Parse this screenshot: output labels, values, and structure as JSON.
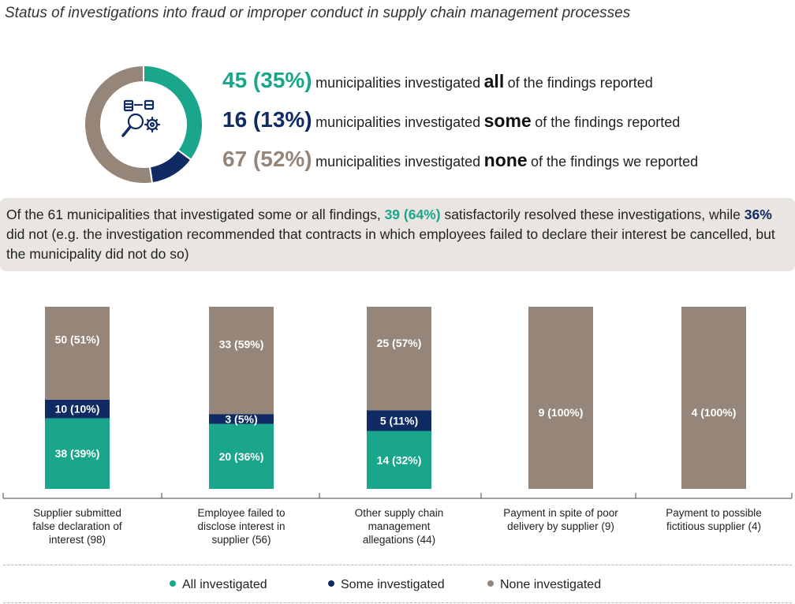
{
  "title": "Status of investigations into fraud or improper conduct in supply chain management processes",
  "colors": {
    "all": "#1aa68b",
    "some": "#102a64",
    "none": "#958679"
  },
  "summary": [
    {
      "key": "all",
      "number": "45 (35%)",
      "pre": "municipalities investigated",
      "keyword": "all",
      "post": "of the findings reported",
      "value": 45
    },
    {
      "key": "some",
      "number": "16 (13%)",
      "pre": "municipalities investigated",
      "keyword": "some",
      "post": "of the findings reported",
      "value": 16
    },
    {
      "key": "none",
      "number": "67 (52%)",
      "pre": "municipalities investigated",
      "keyword": "none",
      "post": "of the findings we reported",
      "value": 67
    }
  ],
  "icon": "investigation-magnifier-gear-icon",
  "note": {
    "part1": "Of the 61 municipalities that investigated some or all findings, ",
    "hl1": "39 (64%)",
    "part2": " satisfactorily resolved these investigations, while ",
    "hl2": "36%",
    "part3": " did not (e.g. the investigation recommended that contracts in which employees failed to declare their interest be cancelled, but the municipality did not do so)"
  },
  "chart_data": [
    {
      "type": "pie",
      "labels": [
        "All investigated",
        "Some investigated",
        "None investigated"
      ],
      "values": [
        45,
        16,
        67
      ]
    },
    {
      "type": "bar",
      "stacked": true,
      "normalized": true,
      "categories": [
        "Supplier submitted false declaration of interest (98)",
        "Employee failed to disclose interest in supplier (56)",
        "Other supply chain management allegations (44)",
        "Payment in spite of poor delivery by supplier (9)",
        "Payment to possible fictitious supplier (4)"
      ],
      "category_lines": [
        [
          "Supplier submitted",
          "false declaration of",
          "interest (98)"
        ],
        [
          "Employee failed to",
          "disclose interest in",
          "supplier (56)"
        ],
        [
          "Other supply chain",
          "management",
          "allegations (44)"
        ],
        [
          "Payment in spite of poor",
          "delivery by supplier (9)"
        ],
        [
          "Payment to possible",
          "fictitious supplier (4)"
        ]
      ],
      "series": [
        {
          "name": "All investigated",
          "key": "all",
          "values": [
            38,
            20,
            14,
            0,
            0
          ],
          "percents": [
            39,
            36,
            32,
            0,
            0
          ],
          "labels": [
            "38 (39%)",
            "20 (36%)",
            "14 (32%)",
            "",
            ""
          ]
        },
        {
          "name": "Some investigated",
          "key": "some",
          "values": [
            10,
            3,
            5,
            0,
            0
          ],
          "percents": [
            10,
            5,
            11,
            0,
            0
          ],
          "labels": [
            "10 (10%)",
            "3 (5%)",
            "5 (11%)",
            "",
            ""
          ]
        },
        {
          "name": "None investigated",
          "key": "none",
          "values": [
            50,
            33,
            25,
            9,
            4
          ],
          "percents": [
            51,
            59,
            57,
            100,
            100
          ],
          "labels": [
            "50 (51%)",
            "33 (59%)",
            "25 (57%)",
            "9 (100%)",
            "4 (100%)"
          ]
        }
      ],
      "legend": [
        "All investigated",
        "Some investigated",
        "None investigated"
      ],
      "legend_position": "bottom"
    }
  ]
}
